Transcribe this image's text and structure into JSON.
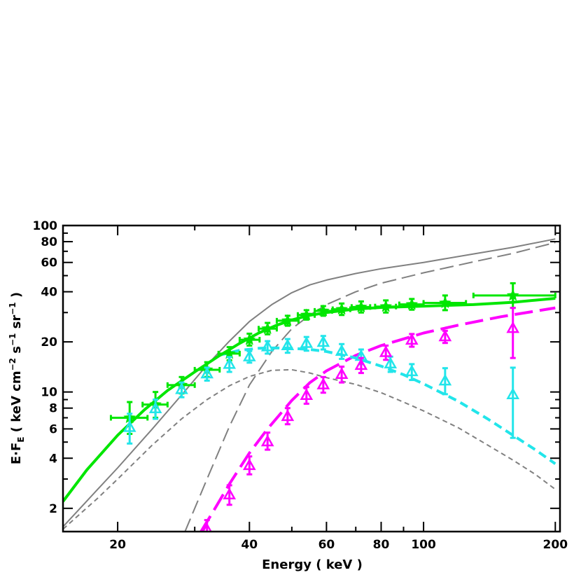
{
  "chart_data": {
    "type": "scatter",
    "xlabel": "Energy ( keV )",
    "ylabel": {
      "prefix": "E·F",
      "sub": "E",
      "open": " ( keV cm",
      "sup1": "−2",
      "mid1": " s",
      "sup2": "−1",
      "mid2": " sr",
      "sup3": "−1",
      "close": " )"
    },
    "x_scale": "log",
    "y_scale": "log",
    "xlim": [
      15,
      205
    ],
    "ylim": [
      1.45,
      100
    ],
    "x_ticks": [
      20,
      40,
      60,
      80,
      100,
      200
    ],
    "y_ticks": [
      2,
      4,
      6,
      8,
      10,
      20,
      40,
      60,
      80,
      100
    ],
    "colors": {
      "green": "#00e600",
      "cyan": "#22e5ea",
      "magenta": "#ff00ff",
      "grey": "#808080"
    },
    "model_curves": [
      {
        "color": "green",
        "style": "solid-thick",
        "x": [
          15,
          17,
          20,
          23,
          26,
          30,
          34,
          38,
          42,
          46,
          50,
          55,
          60,
          70,
          80,
          100,
          130,
          160,
          200
        ],
        "y": [
          2.2,
          3.4,
          5.5,
          7.8,
          10.2,
          13.2,
          16.4,
          19.6,
          22.6,
          25.1,
          27.1,
          28.9,
          30.0,
          31.5,
          32.2,
          32.8,
          33.5,
          34.6,
          36.5
        ]
      },
      {
        "color": "cyan",
        "style": "dashed-thick",
        "x": [
          34,
          38,
          42,
          46,
          50,
          55,
          60,
          70,
          80,
          90,
          100,
          120,
          140,
          160,
          180,
          200
        ],
        "y": [
          16.6,
          17.8,
          18.3,
          18.4,
          18.3,
          18.0,
          17.5,
          16.0,
          14.3,
          12.7,
          11.2,
          8.8,
          6.9,
          5.5,
          4.5,
          3.7
        ]
      },
      {
        "color": "magenta",
        "style": "longdash-thick",
        "x": [
          31,
          33,
          36,
          40,
          44,
          50,
          55,
          60,
          70,
          80,
          100,
          120,
          150,
          200
        ],
        "y": [
          1.45,
          1.9,
          2.8,
          4.3,
          6.0,
          8.9,
          11.4,
          13.4,
          16.6,
          19.0,
          22.6,
          25.2,
          28.3,
          32.0
        ]
      },
      {
        "color": "grey",
        "style": "solid-thin",
        "x": [
          15,
          18,
          20,
          24,
          28,
          32,
          36,
          40,
          45,
          50,
          55,
          60,
          70,
          80,
          100,
          130,
          160,
          200
        ],
        "y": [
          1.55,
          2.6,
          3.5,
          6.0,
          9.6,
          14.5,
          20.2,
          26.5,
          33.5,
          39.5,
          44.0,
          47.0,
          51.5,
          55.0,
          60.0,
          67.5,
          74.0,
          83.0
        ]
      },
      {
        "color": "grey",
        "style": "longdash-thin",
        "x": [
          28.5,
          32,
          36,
          40,
          45,
          50,
          55,
          60,
          70,
          80,
          100,
          130,
          160,
          200
        ],
        "y": [
          1.45,
          3.0,
          6.2,
          11.0,
          17.5,
          24.0,
          29.0,
          33.5,
          40.0,
          45.0,
          52.0,
          60.5,
          68.0,
          79.0
        ]
      },
      {
        "color": "grey",
        "style": "shortdash-thin",
        "x": [
          15,
          18,
          20,
          24,
          28,
          32,
          36,
          40,
          45,
          50,
          55,
          60,
          70,
          80,
          90,
          100,
          120,
          140,
          160,
          180,
          200
        ],
        "y": [
          1.5,
          2.3,
          3.0,
          4.8,
          6.9,
          9.0,
          10.9,
          12.4,
          13.5,
          13.6,
          13.0,
          12.2,
          11.1,
          9.9,
          8.7,
          7.7,
          6.1,
          4.8,
          3.9,
          3.2,
          2.6
        ]
      }
    ],
    "data_series": [
      {
        "color": "green",
        "marker": "star",
        "points": [
          {
            "x": 21.3,
            "y": 7.0,
            "ylo": 5.6,
            "yhi": 8.7,
            "xlo": 19.3,
            "xhi": 23.4
          },
          {
            "x": 24.4,
            "y": 8.4,
            "ylo": 7.0,
            "yhi": 10.0,
            "xlo": 22.8,
            "xhi": 26.0
          },
          {
            "x": 28.0,
            "y": 11.0,
            "ylo": 9.8,
            "yhi": 12.3,
            "xlo": 26.0,
            "xhi": 30.0
          },
          {
            "x": 32.0,
            "y": 13.6,
            "ylo": 12.3,
            "yhi": 15.1,
            "xlo": 30.0,
            "xhi": 34.2
          },
          {
            "x": 36.0,
            "y": 17.0,
            "ylo": 15.5,
            "yhi": 18.6,
            "xlo": 34.0,
            "xhi": 38.0
          },
          {
            "x": 40.0,
            "y": 20.6,
            "ylo": 19.0,
            "yhi": 22.4,
            "xlo": 38.0,
            "xhi": 42.2
          },
          {
            "x": 44.0,
            "y": 24.0,
            "ylo": 22.2,
            "yhi": 26.0,
            "xlo": 42.0,
            "xhi": 46.2
          },
          {
            "x": 48.9,
            "y": 26.8,
            "ylo": 25.0,
            "yhi": 28.7,
            "xlo": 46.2,
            "xhi": 51.8
          },
          {
            "x": 54.0,
            "y": 29.0,
            "ylo": 27.2,
            "yhi": 31.0,
            "xlo": 51.6,
            "xhi": 56.4
          },
          {
            "x": 59.0,
            "y": 30.7,
            "ylo": 28.7,
            "yhi": 32.8,
            "xlo": 56.4,
            "xhi": 61.8
          },
          {
            "x": 65.0,
            "y": 31.4,
            "ylo": 29.0,
            "yhi": 34.0,
            "xlo": 62.0,
            "xhi": 68.0
          },
          {
            "x": 72.0,
            "y": 32.4,
            "ylo": 30.0,
            "yhi": 35.0,
            "xlo": 68.5,
            "xhi": 75.5
          },
          {
            "x": 82.0,
            "y": 32.6,
            "ylo": 30.0,
            "yhi": 35.5,
            "xlo": 77.5,
            "xhi": 86.5
          },
          {
            "x": 94.0,
            "y": 33.6,
            "ylo": 31.2,
            "yhi": 36.2,
            "xlo": 88.0,
            "xhi": 100.0
          },
          {
            "x": 112.0,
            "y": 34.3,
            "ylo": 31.0,
            "yhi": 38.0,
            "xlo": 100.0,
            "xhi": 125.0
          },
          {
            "x": 160.0,
            "y": 38.0,
            "ylo": 32.0,
            "yhi": 45.0,
            "xlo": 130.0,
            "xhi": 200.0
          }
        ]
      },
      {
        "color": "cyan",
        "marker": "triangle",
        "points": [
          {
            "x": 21.3,
            "y": 6.1,
            "ylo": 4.9,
            "yhi": 7.4
          },
          {
            "x": 24.4,
            "y": 7.9,
            "ylo": 6.9,
            "yhi": 9.0
          },
          {
            "x": 28.0,
            "y": 10.3,
            "ylo": 9.3,
            "yhi": 11.4
          },
          {
            "x": 32.0,
            "y": 12.8,
            "ylo": 11.7,
            "yhi": 14.0
          },
          {
            "x": 36.0,
            "y": 14.6,
            "ylo": 13.2,
            "yhi": 16.2
          },
          {
            "x": 40.0,
            "y": 16.2,
            "ylo": 15.0,
            "yhi": 17.6
          },
          {
            "x": 44.0,
            "y": 18.6,
            "ylo": 17.0,
            "yhi": 20.2
          },
          {
            "x": 48.9,
            "y": 18.9,
            "ylo": 17.2,
            "yhi": 20.8
          },
          {
            "x": 54.0,
            "y": 19.5,
            "ylo": 17.7,
            "yhi": 21.4
          },
          {
            "x": 59.0,
            "y": 19.8,
            "ylo": 18.0,
            "yhi": 21.7
          },
          {
            "x": 65.0,
            "y": 17.5,
            "ylo": 15.8,
            "yhi": 19.4
          },
          {
            "x": 72.0,
            "y": 16.3,
            "ylo": 14.7,
            "yhi": 18.0
          },
          {
            "x": 84.0,
            "y": 14.7,
            "ylo": 13.2,
            "yhi": 16.3
          },
          {
            "x": 94.0,
            "y": 13.2,
            "ylo": 11.8,
            "yhi": 14.7
          },
          {
            "x": 112.0,
            "y": 11.6,
            "ylo": 9.7,
            "yhi": 13.9
          },
          {
            "x": 160.0,
            "y": 9.6,
            "ylo": 5.3,
            "yhi": 14.0
          }
        ]
      },
      {
        "color": "magenta",
        "marker": "triangle",
        "points": [
          {
            "x": 32.0,
            "y": 1.48,
            "ylo": 1.2,
            "yhi": 1.7
          },
          {
            "x": 36.0,
            "y": 2.4,
            "ylo": 2.1,
            "yhi": 2.75
          },
          {
            "x": 40.0,
            "y": 3.6,
            "ylo": 3.2,
            "yhi": 4.1
          },
          {
            "x": 44.0,
            "y": 5.0,
            "ylo": 4.5,
            "yhi": 5.7
          },
          {
            "x": 48.9,
            "y": 7.1,
            "ylo": 6.4,
            "yhi": 8.0
          },
          {
            "x": 54.0,
            "y": 9.5,
            "ylo": 8.5,
            "yhi": 10.7
          },
          {
            "x": 59.0,
            "y": 11.0,
            "ylo": 9.9,
            "yhi": 12.3
          },
          {
            "x": 65.0,
            "y": 12.7,
            "ylo": 11.4,
            "yhi": 14.2
          },
          {
            "x": 72.0,
            "y": 14.4,
            "ylo": 13.0,
            "yhi": 16.0
          },
          {
            "x": 82.0,
            "y": 17.2,
            "ylo": 15.6,
            "yhi": 19.0
          },
          {
            "x": 94.0,
            "y": 20.4,
            "ylo": 18.7,
            "yhi": 22.3
          },
          {
            "x": 112.0,
            "y": 21.4,
            "ylo": 19.7,
            "yhi": 23.3
          },
          {
            "x": 160.0,
            "y": 24.0,
            "ylo": 16.0,
            "yhi": 32.0
          }
        ]
      }
    ]
  }
}
